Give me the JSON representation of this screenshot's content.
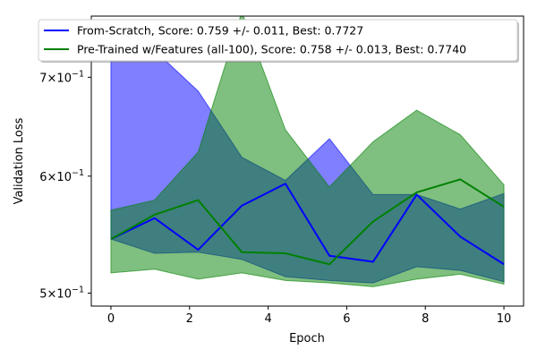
{
  "chart_data": {
    "type": "line",
    "xlabel": "Epoch",
    "ylabel": "Validation Loss",
    "y_scale": "log",
    "xlim": [
      -0.5,
      10.5
    ],
    "ylim": [
      0.49,
      0.77
    ],
    "x_ticks": [
      0,
      2,
      4,
      6,
      8,
      10
    ],
    "x_tick_labels": [
      "0",
      "2",
      "4",
      "6",
      "8",
      "10"
    ],
    "y_ticks": [
      0.5,
      0.6,
      0.7
    ],
    "y_tick_labels": [
      {
        "mantissa": "5",
        "base": "10",
        "exponent": "−1"
      },
      {
        "mantissa": "6",
        "base": "10",
        "exponent": "−1"
      },
      {
        "mantissa": "7",
        "base": "10",
        "exponent": "−1"
      }
    ],
    "grid": false,
    "legend_position": "top",
    "x": [
      0,
      1.11,
      2.22,
      3.33,
      4.44,
      5.56,
      6.67,
      7.78,
      8.89,
      10
    ],
    "series": [
      {
        "name": "From-Scratch, Score: 0.759 +/- 0.011,  Best: 0.7727",
        "color": "#0000ff",
        "band_color": "#0000ff",
        "band_opacity": 0.5,
        "values": [
          0.544,
          0.562,
          0.535,
          0.573,
          0.593,
          0.53,
          0.525,
          0.583,
          0.546,
          0.523
        ],
        "upper": [
          0.76,
          0.73,
          0.685,
          0.618,
          0.596,
          0.636,
          0.583,
          0.583,
          0.57,
          0.584
        ],
        "lower": [
          0.544,
          0.532,
          0.533,
          0.527,
          0.513,
          0.51,
          0.508,
          0.521,
          0.518,
          0.509
        ]
      },
      {
        "name": "Pre-Trained w/Features (all-100), Score: 0.758 +/- 0.013,  Best: 0.7740",
        "color": "#008000",
        "band_color": "#008000",
        "band_opacity": 0.5,
        "values": [
          0.544,
          0.565,
          0.578,
          0.533,
          0.532,
          0.523,
          0.559,
          0.585,
          0.597,
          0.572
        ],
        "upper": [
          0.569,
          0.578,
          0.623,
          0.775,
          0.645,
          0.59,
          0.633,
          0.665,
          0.64,
          0.592
        ],
        "lower": [
          0.516,
          0.519,
          0.511,
          0.516,
          0.51,
          0.508,
          0.505,
          0.511,
          0.515,
          0.507
        ]
      }
    ]
  }
}
